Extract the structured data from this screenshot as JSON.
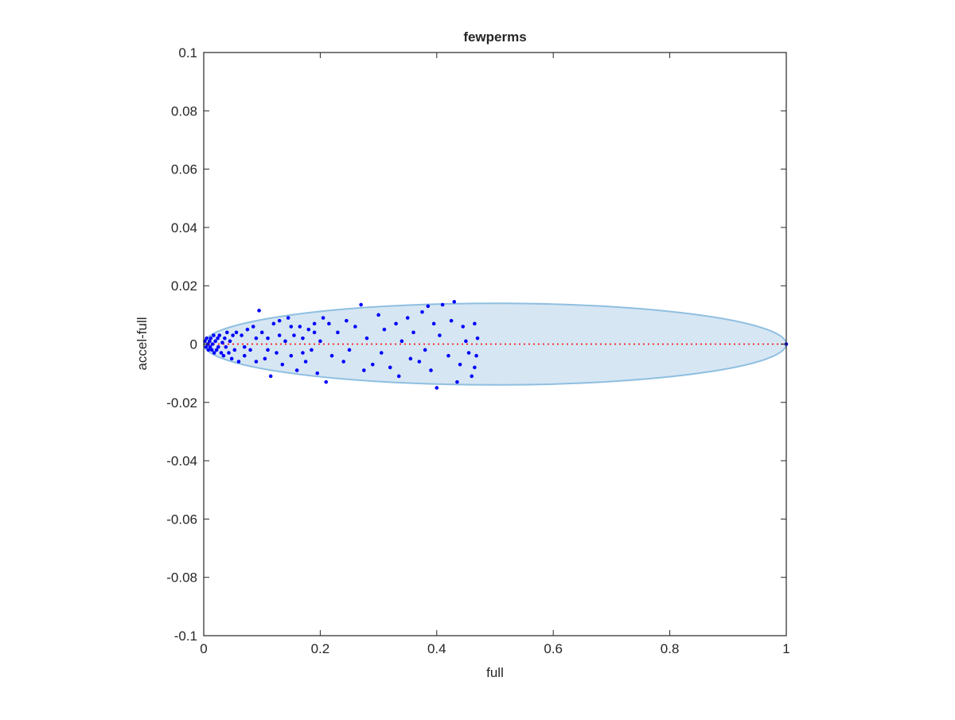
{
  "chart_data": {
    "type": "scatter",
    "title": "fewperms",
    "xlabel": "full",
    "ylabel": "accel-full",
    "xlim": [
      0,
      1
    ],
    "ylim": [
      -0.1,
      0.1
    ],
    "xticks": [
      0,
      0.2,
      0.4,
      0.6,
      0.8,
      1
    ],
    "yticks": [
      -0.1,
      -0.08,
      -0.06,
      -0.04,
      -0.02,
      0,
      0.02,
      0.04,
      0.06,
      0.08,
      0.1
    ],
    "ellipse": {
      "center": [
        0.5,
        0
      ],
      "radii": [
        0.5,
        0.014
      ],
      "color": "#d6e6f3",
      "edge": "#8fbfe0"
    },
    "ref_line": {
      "x": [
        0,
        1
      ],
      "y": [
        0,
        0
      ],
      "color": "#ff0000"
    },
    "series": [
      {
        "color": "#0000ff",
        "x": [
          0.002,
          0.004,
          0.005,
          0.007,
          0.008,
          0.01,
          0.011,
          0.012,
          0.014,
          0.015,
          0.017,
          0.018,
          0.02,
          0.022,
          0.024,
          0.025,
          0.027,
          0.03,
          0.032,
          0.034,
          0.036,
          0.038,
          0.04,
          0.043,
          0.045,
          0.048,
          0.05,
          0.053,
          0.056,
          0.06,
          0.065,
          0.07,
          0.075,
          0.08,
          0.085,
          0.09,
          0.095,
          0.1,
          0.105,
          0.11,
          0.115,
          0.12,
          0.125,
          0.13,
          0.135,
          0.14,
          0.145,
          0.15,
          0.155,
          0.16,
          0.165,
          0.17,
          0.175,
          0.18,
          0.185,
          0.19,
          0.195,
          0.2,
          0.07,
          0.09,
          0.11,
          0.13,
          0.15,
          0.17,
          0.19,
          0.205,
          0.21,
          0.215,
          0.22,
          0.23,
          0.24,
          0.245,
          0.25,
          0.26,
          0.27,
          0.275,
          0.28,
          0.29,
          0.3,
          0.305,
          0.31,
          0.32,
          0.33,
          0.335,
          0.34,
          0.35,
          0.355,
          0.36,
          0.37,
          0.375,
          0.38,
          0.385,
          0.39,
          0.395,
          0.4,
          0.405,
          0.41,
          0.42,
          0.425,
          0.43,
          0.435,
          0.44,
          0.445,
          0.45,
          0.455,
          0.46,
          0.465,
          0.468,
          0.47,
          0.465,
          1
        ],
        "values": [
          0.001,
          -0.001,
          0.002,
          0,
          -0.002,
          0.001,
          -0.001,
          0.002,
          -0.002,
          0,
          0.003,
          -0.003,
          0.001,
          -0.002,
          0.002,
          -0.001,
          0.003,
          -0.003,
          0.0005,
          -0.004,
          0.002,
          -0.001,
          0.004,
          -0.003,
          0.001,
          -0.005,
          0.003,
          -0.002,
          0.004,
          -0.006,
          0.003,
          -0.004,
          0.005,
          -0.002,
          0.006,
          -0.006,
          0.0115,
          0.004,
          -0.005,
          0.002,
          -0.011,
          0.007,
          -0.003,
          0.008,
          -0.007,
          0.001,
          0.009,
          -0.004,
          0.003,
          -0.009,
          0.006,
          0.002,
          -0.006,
          0.005,
          -0.002,
          0.007,
          -0.01,
          0.001,
          -0.001,
          0.002,
          -0.002,
          0.003,
          0.006,
          -0.003,
          0.004,
          0.009,
          -0.013,
          0.007,
          -0.004,
          0.004,
          -0.006,
          0.008,
          -0.002,
          0.006,
          0.0135,
          -0.009,
          0.002,
          -0.007,
          0.01,
          -0.003,
          0.005,
          -0.008,
          0.007,
          -0.011,
          0.001,
          0.009,
          -0.005,
          0.004,
          -0.006,
          0.011,
          -0.002,
          0.013,
          -0.009,
          0.007,
          -0.015,
          0.003,
          0.0135,
          -0.004,
          0.008,
          0.0145,
          -0.013,
          -0.007,
          0.006,
          0.001,
          -0.003,
          -0.011,
          0.007,
          -0.004,
          0.002,
          -0.008,
          0
        ]
      }
    ]
  }
}
